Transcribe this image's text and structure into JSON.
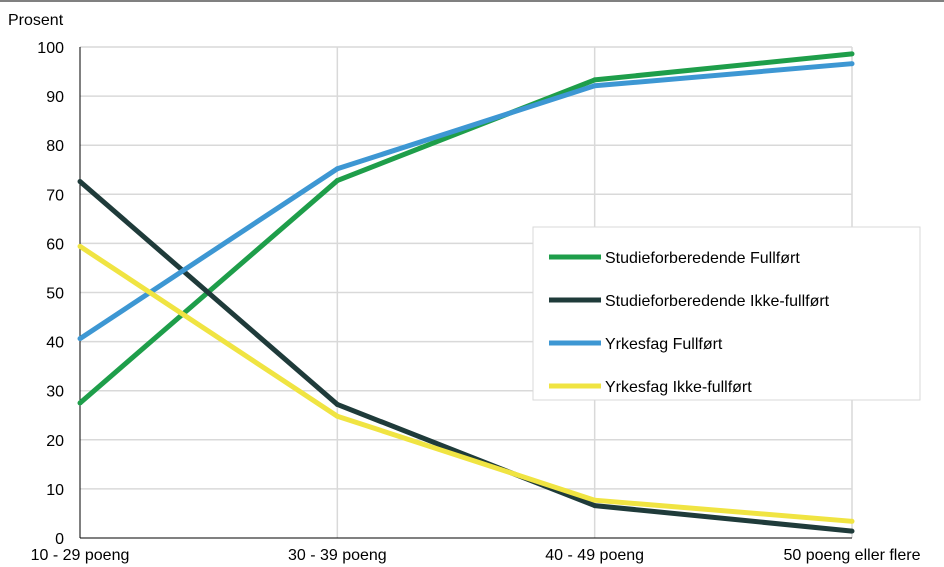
{
  "chart_data": {
    "type": "line",
    "title": "",
    "xlabel": "",
    "ylabel": "Prosent",
    "ylim": [
      0,
      100
    ],
    "yticks": [
      0,
      10,
      20,
      30,
      40,
      50,
      60,
      70,
      80,
      90,
      100
    ],
    "grid": true,
    "legend_position": "right",
    "categories": [
      "10 - 29 poeng",
      "30 - 39 poeng",
      "40 - 49 poeng",
      "50 poeng eller flere"
    ],
    "series": [
      {
        "name": "Studieforberedende Fullført",
        "color": "#1e9e4a",
        "values": [
          27.5,
          72.8,
          93.3,
          98.6
        ]
      },
      {
        "name": "Studieforberedende Ikke-fullført",
        "color": "#1f3b3a",
        "values": [
          72.6,
          27.2,
          6.6,
          1.4
        ]
      },
      {
        "name": "Yrkesfag Fullført",
        "color": "#3d97d3",
        "values": [
          40.6,
          75.2,
          92.1,
          96.6
        ]
      },
      {
        "name": "Yrkesfag Ikke-fullført",
        "color": "#f0e442",
        "values": [
          59.4,
          24.8,
          7.7,
          3.4
        ]
      }
    ]
  }
}
